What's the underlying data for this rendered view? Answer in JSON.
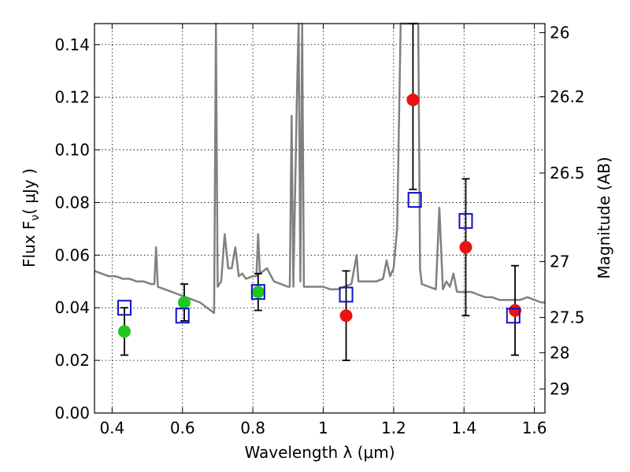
{
  "chart_data": {
    "type": "scatter",
    "xlabel": "Wavelength  λ (μm)",
    "ylabel": "Flux  F",
    "ylabel_sub": "ν",
    "ylabel_unit": "( μJy )",
    "y2label": "Magnitude (AB)",
    "xlim": [
      0.35,
      1.63
    ],
    "ylim": [
      0.0,
      0.148
    ],
    "x_ticks": [
      0.4,
      0.6,
      0.8,
      1.0,
      1.2,
      1.4,
      1.6
    ],
    "x_tick_labels": [
      "0.4",
      "0.6",
      "0.8",
      "1",
      "1.2",
      "1.4",
      "1.6"
    ],
    "y_ticks": [
      0.0,
      0.02,
      0.04,
      0.06,
      0.08,
      0.1,
      0.12,
      0.14
    ],
    "y_tick_labels": [
      "0.00",
      "0.02",
      "0.04",
      "0.06",
      "0.08",
      "0.10",
      "0.12",
      "0.14"
    ],
    "y2_ticks": [
      {
        "mag": 26,
        "label": "26"
      },
      {
        "mag": 26.2,
        "label": "26.2"
      },
      {
        "mag": 26.5,
        "label": "26.5"
      },
      {
        "mag": 27,
        "label": "27"
      },
      {
        "mag": 27.5,
        "label": "27.5"
      },
      {
        "mag": 28,
        "label": "28"
      },
      {
        "mag": 29,
        "label": "29"
      }
    ],
    "grid": true,
    "colors": {
      "spectrum": "#808080",
      "green_points": "#1ec81e",
      "red_points": "#ee1111",
      "model_squares": "#1010c8",
      "errorbars": "#000000"
    },
    "series": [
      {
        "kind": "model-spectrum",
        "points": [
          [
            0.35,
            0.054
          ],
          [
            0.37,
            0.053
          ],
          [
            0.39,
            0.052
          ],
          [
            0.41,
            0.052
          ],
          [
            0.43,
            0.051
          ],
          [
            0.45,
            0.051
          ],
          [
            0.47,
            0.05
          ],
          [
            0.49,
            0.05
          ],
          [
            0.51,
            0.049
          ],
          [
            0.52,
            0.049
          ],
          [
            0.525,
            0.063
          ],
          [
            0.53,
            0.048
          ],
          [
            0.55,
            0.047
          ],
          [
            0.57,
            0.046
          ],
          [
            0.59,
            0.045
          ],
          [
            0.61,
            0.044
          ],
          [
            0.63,
            0.043
          ],
          [
            0.65,
            0.042
          ],
          [
            0.67,
            0.04
          ],
          [
            0.69,
            0.038
          ],
          [
            0.695,
            0.148
          ],
          [
            0.7,
            0.048
          ],
          [
            0.71,
            0.05
          ],
          [
            0.72,
            0.068
          ],
          [
            0.73,
            0.055
          ],
          [
            0.74,
            0.055
          ],
          [
            0.75,
            0.063
          ],
          [
            0.76,
            0.052
          ],
          [
            0.77,
            0.053
          ],
          [
            0.78,
            0.051
          ],
          [
            0.8,
            0.052
          ],
          [
            0.81,
            0.052
          ],
          [
            0.815,
            0.068
          ],
          [
            0.82,
            0.053
          ],
          [
            0.84,
            0.055
          ],
          [
            0.86,
            0.05
          ],
          [
            0.88,
            0.049
          ],
          [
            0.9,
            0.048
          ],
          [
            0.905,
            0.048
          ],
          [
            0.91,
            0.113
          ],
          [
            0.915,
            0.048
          ],
          [
            0.925,
            0.12
          ],
          [
            0.93,
            0.148
          ],
          [
            0.935,
            0.05
          ],
          [
            0.94,
            0.148
          ],
          [
            0.945,
            0.048
          ],
          [
            0.96,
            0.048
          ],
          [
            0.98,
            0.048
          ],
          [
            1.0,
            0.048
          ],
          [
            1.02,
            0.047
          ],
          [
            1.04,
            0.047
          ],
          [
            1.06,
            0.048
          ],
          [
            1.08,
            0.049
          ],
          [
            1.095,
            0.06
          ],
          [
            1.1,
            0.05
          ],
          [
            1.12,
            0.05
          ],
          [
            1.15,
            0.05
          ],
          [
            1.17,
            0.051
          ],
          [
            1.18,
            0.058
          ],
          [
            1.19,
            0.052
          ],
          [
            1.2,
            0.055
          ],
          [
            1.21,
            0.07
          ],
          [
            1.22,
            0.148
          ],
          [
            1.27,
            0.148
          ],
          [
            1.275,
            0.055
          ],
          [
            1.28,
            0.049
          ],
          [
            1.3,
            0.048
          ],
          [
            1.32,
            0.047
          ],
          [
            1.33,
            0.078
          ],
          [
            1.34,
            0.047
          ],
          [
            1.35,
            0.05
          ],
          [
            1.36,
            0.048
          ],
          [
            1.37,
            0.053
          ],
          [
            1.38,
            0.046
          ],
          [
            1.4,
            0.046
          ],
          [
            1.42,
            0.046
          ],
          [
            1.44,
            0.045
          ],
          [
            1.46,
            0.044
          ],
          [
            1.48,
            0.044
          ],
          [
            1.5,
            0.043
          ],
          [
            1.52,
            0.043
          ],
          [
            1.54,
            0.043
          ],
          [
            1.56,
            0.043
          ],
          [
            1.58,
            0.044
          ],
          [
            1.6,
            0.043
          ],
          [
            1.62,
            0.042
          ],
          [
            1.63,
            0.042
          ]
        ]
      },
      {
        "kind": "observed-green",
        "points": [
          {
            "x": 0.435,
            "y": 0.031,
            "err": 0.009
          },
          {
            "x": 0.605,
            "y": 0.042,
            "err": 0.007
          },
          {
            "x": 0.815,
            "y": 0.046,
            "err": 0.007
          }
        ]
      },
      {
        "kind": "observed-red",
        "points": [
          {
            "x": 1.065,
            "y": 0.037,
            "err": 0.017
          },
          {
            "x": 1.255,
            "y": 0.119,
            "err": 0.034
          },
          {
            "x": 1.405,
            "y": 0.063,
            "err": 0.026
          },
          {
            "x": 1.545,
            "y": 0.039,
            "err": 0.017
          }
        ]
      },
      {
        "kind": "model-bandpass",
        "points": [
          {
            "x": 0.435,
            "y": 0.04
          },
          {
            "x": 0.6,
            "y": 0.037
          },
          {
            "x": 0.815,
            "y": 0.046
          },
          {
            "x": 1.065,
            "y": 0.045
          },
          {
            "x": 1.26,
            "y": 0.081
          },
          {
            "x": 1.405,
            "y": 0.073
          },
          {
            "x": 1.54,
            "y": 0.037
          }
        ]
      }
    ]
  }
}
